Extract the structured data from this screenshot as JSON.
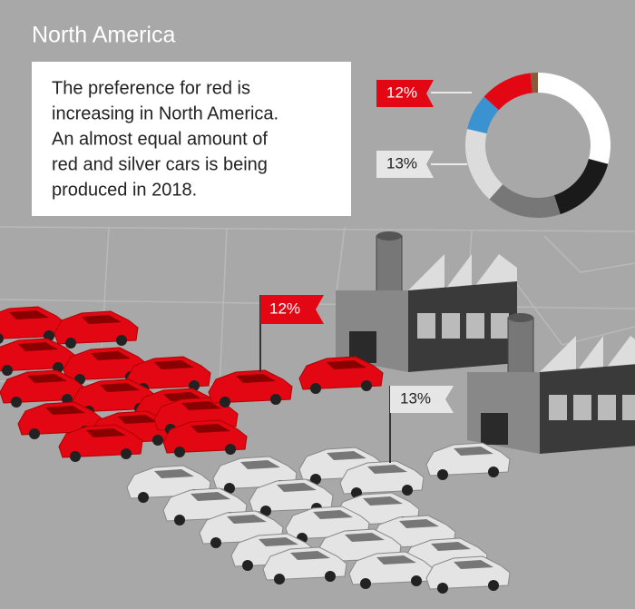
{
  "title": "North America",
  "text_lines": [
    "The preference for red is",
    "increasing in North America.",
    "An almost equal amount of",
    "red and silver cars is being",
    "produced in 2018."
  ],
  "donut_labels": [
    "12%",
    "13%"
  ],
  "flags": [
    "12%",
    "13%"
  ]
}
